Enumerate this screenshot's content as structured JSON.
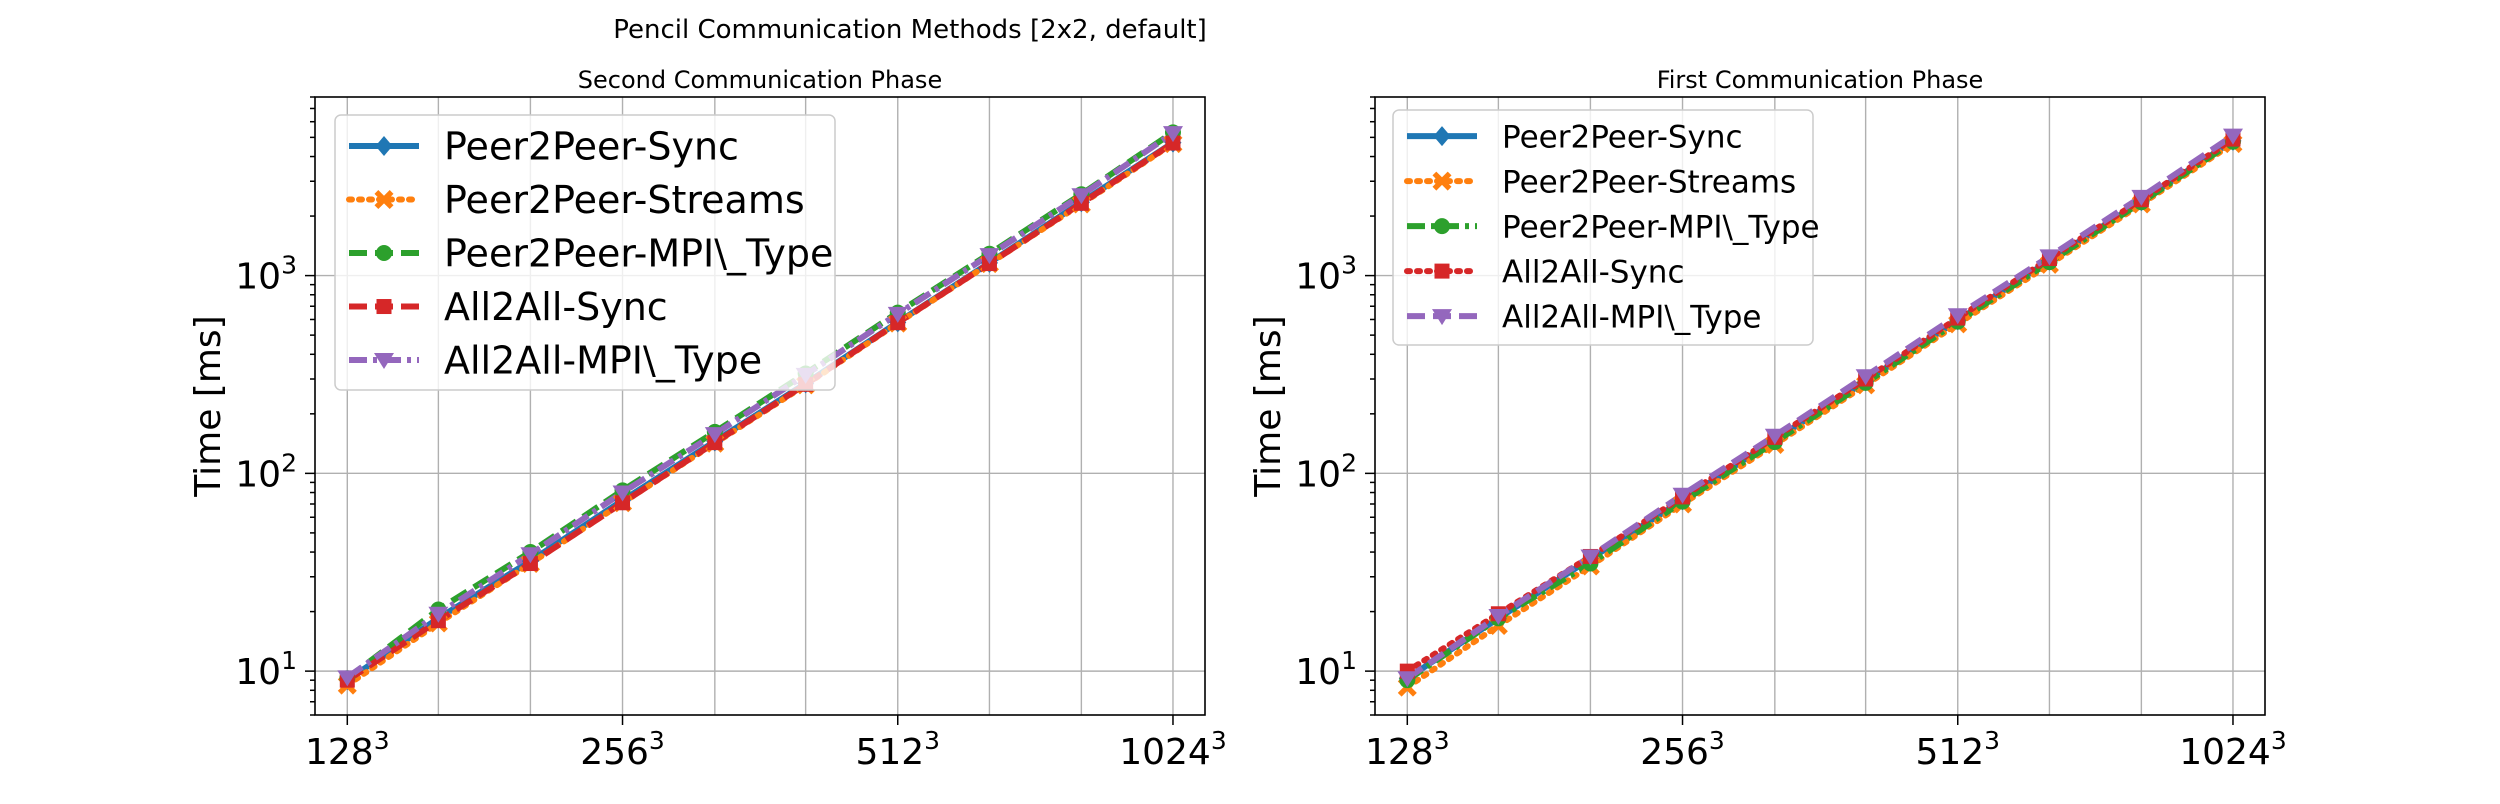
{
  "suptitle": "Pencil Communication Methods [2x2, default]",
  "chart_data": [
    {
      "type": "line",
      "title": "Second Communication Phase",
      "ylabel": "Time [ms]",
      "xlabel": "",
      "yscale": "log",
      "xscale": "log2",
      "xlim": [
        118,
        1110
      ],
      "ylim": [
        6.0,
        8000
      ],
      "xticks": [
        {
          "value": 128,
          "base": "128",
          "exp": "3"
        },
        {
          "value": 256,
          "base": "256",
          "exp": "3"
        },
        {
          "value": 512,
          "base": "512",
          "exp": "3"
        },
        {
          "value": 1024,
          "base": "1024",
          "exp": "3"
        }
      ],
      "yticks": [
        {
          "value": 10,
          "base": "10",
          "exp": "1"
        },
        {
          "value": 100,
          "base": "10",
          "exp": "2"
        },
        {
          "value": 1000,
          "base": "10",
          "exp": "3"
        }
      ],
      "grid": true,
      "legend_position": "upper-left",
      "x": [
        128,
        161,
        203,
        256,
        323,
        406,
        512,
        645,
        813,
        1024
      ],
      "series": [
        {
          "name": "Peer2Peer-Sync",
          "color": "#1f77b4",
          "marker": "diamond",
          "dash": "solid",
          "values": [
            9.0,
            18.5,
            36,
            73,
            145,
            285,
            580,
            1160,
            2350,
            4700
          ]
        },
        {
          "name": "Peer2Peer-Streams",
          "color": "#ff7f0e",
          "marker": "x",
          "dash": "dotted",
          "values": [
            8.5,
            17.5,
            35,
            71,
            142,
            280,
            575,
            1150,
            2300,
            4650
          ]
        },
        {
          "name": "Peer2Peer-MPI\\_Type",
          "color": "#2ca02c",
          "marker": "circle",
          "dash": "dashed",
          "values": [
            9.2,
            20.5,
            40,
            82,
            162,
            320,
            650,
            1290,
            2580,
            5300
          ]
        },
        {
          "name": "All2All-Sync",
          "color": "#d62728",
          "marker": "square",
          "dash": "dashed",
          "values": [
            9.0,
            18.0,
            35,
            71,
            143,
            282,
            578,
            1150,
            2320,
            4680
          ]
        },
        {
          "name": "All2All-MPI\\_Type",
          "color": "#9467bd",
          "marker": "triangle-down",
          "dash": "dashdot",
          "values": [
            9.3,
            19.5,
            39,
            80,
            158,
            315,
            640,
            1270,
            2550,
            5250
          ]
        }
      ]
    },
    {
      "type": "line",
      "title": "First Communication Phase",
      "ylabel": "Time [ms]",
      "xlabel": "",
      "yscale": "log",
      "xscale": "log2",
      "xlim": [
        118,
        1110
      ],
      "ylim": [
        6.0,
        8000
      ],
      "xticks": [
        {
          "value": 128,
          "base": "128",
          "exp": "3"
        },
        {
          "value": 256,
          "base": "256",
          "exp": "3"
        },
        {
          "value": 512,
          "base": "512",
          "exp": "3"
        },
        {
          "value": 1024,
          "base": "1024",
          "exp": "3"
        }
      ],
      "yticks": [
        {
          "value": 10,
          "base": "10",
          "exp": "1"
        },
        {
          "value": 100,
          "base": "10",
          "exp": "2"
        },
        {
          "value": 1000,
          "base": "10",
          "exp": "3"
        }
      ],
      "grid": true,
      "legend_position": "upper-left",
      "x": [
        128,
        161,
        203,
        256,
        323,
        406,
        512,
        645,
        813,
        1024
      ],
      "series": [
        {
          "name": "Peer2Peer-Sync",
          "color": "#1f77b4",
          "marker": "diamond",
          "dash": "solid",
          "values": [
            9.2,
            18.5,
            37,
            73,
            148,
            292,
            595,
            1190,
            2380,
            4800
          ]
        },
        {
          "name": "Peer2Peer-Streams",
          "color": "#ff7f0e",
          "marker": "x",
          "dash": "dotted",
          "values": [
            8.3,
            17.0,
            34,
            70,
            140,
            280,
            570,
            1140,
            2300,
            4650
          ]
        },
        {
          "name": "Peer2Peer-MPI\\_Type",
          "color": "#2ca02c",
          "marker": "circle",
          "dash": "dashdot",
          "values": [
            9.0,
            18.5,
            35,
            72,
            144,
            287,
            585,
            1170,
            2350,
            4750
          ]
        },
        {
          "name": "All2All-Sync",
          "color": "#d62728",
          "marker": "square",
          "dash": "dotted",
          "values": [
            10.0,
            19.5,
            38,
            76,
            152,
            300,
            610,
            1220,
            2420,
            4900
          ]
        },
        {
          "name": "All2All-MPI\\_Type",
          "color": "#9467bd",
          "marker": "triangle-down",
          "dash": "dashed",
          "values": [
            9.2,
            19.0,
            38,
            78,
            155,
            310,
            630,
            1250,
            2500,
            5100
          ]
        }
      ]
    }
  ]
}
